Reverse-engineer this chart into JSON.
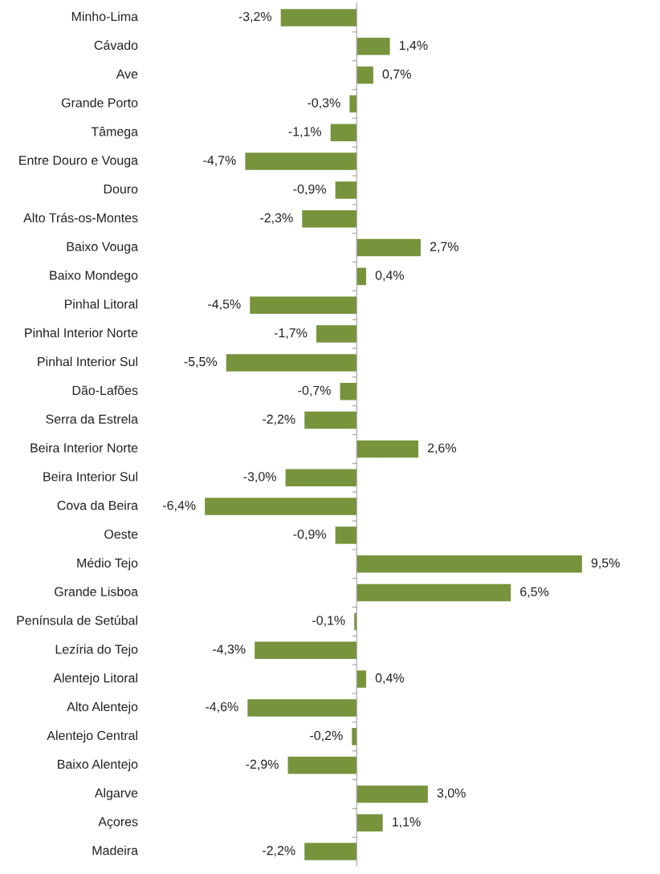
{
  "chart_data": {
    "type": "bar",
    "orientation": "horizontal",
    "color": "#77933c",
    "grid": false,
    "legend": false,
    "categories": [
      "Minho-Lima",
      "Cávado",
      "Ave",
      "Grande Porto",
      "Tâmega",
      "Entre Douro e Vouga",
      "Douro",
      "Alto Trás-os-Montes",
      "Baixo Vouga",
      "Baixo Mondego",
      "Pinhal Litoral",
      "Pinhal Interior Norte",
      "Pinhal Interior Sul",
      "Dão-Lafões",
      "Serra da Estrela",
      "Beira Interior Norte",
      "Beira Interior Sul",
      "Cova da Beira",
      "Oeste",
      "Médio Tejo",
      "Grande Lisboa",
      "Península de Setúbal",
      "Lezíria do Tejo",
      "Alentejo Litoral",
      "Alto Alentejo",
      "Alentejo Central",
      "Baixo Alentejo",
      "Algarve",
      "Açores",
      "Madeira"
    ],
    "values": [
      -3.2,
      1.4,
      0.7,
      -0.3,
      -1.1,
      -4.7,
      -0.9,
      -2.3,
      2.7,
      0.4,
      -4.5,
      -1.7,
      -5.5,
      -0.7,
      -2.2,
      2.6,
      -3.0,
      -6.4,
      -0.9,
      9.5,
      6.5,
      -0.1,
      -4.3,
      0.4,
      -4.6,
      -0.2,
      -2.9,
      3.0,
      1.1,
      -2.2
    ],
    "value_labels": [
      "-3,2%",
      "1,4%",
      "0,7%",
      "-0,3%",
      "-1,1%",
      "-4,7%",
      "-0,9%",
      "-2,3%",
      "2,7%",
      "0,4%",
      "-4,5%",
      "-1,7%",
      "-5,5%",
      "-0,7%",
      "-2,2%",
      "2,6%",
      "-3,0%",
      "-6,4%",
      "-0,9%",
      "9,5%",
      "6,5%",
      "-0,1%",
      "-4,3%",
      "0,4%",
      "-4,6%",
      "-0,2%",
      "-2,9%",
      "3,0%",
      "1,1%",
      "-2,2%"
    ]
  }
}
